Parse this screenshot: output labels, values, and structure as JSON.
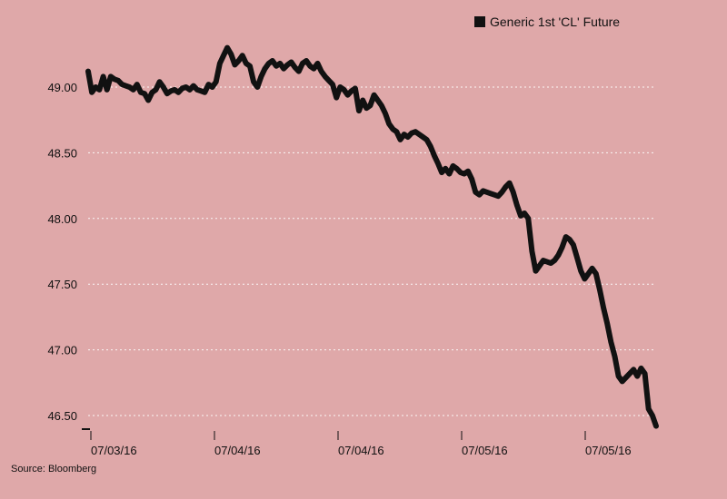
{
  "chart_data": {
    "type": "line",
    "title": "",
    "xlabel": "",
    "ylabel": "",
    "ylim": [
      46.4,
      49.4
    ],
    "y_ticks": [
      46.5,
      47.0,
      47.5,
      48.0,
      48.5,
      49.0
    ],
    "y_tick_labels": [
      "46.50",
      "47.00",
      "47.50",
      "48.00",
      "48.50",
      "49.00"
    ],
    "x_tick_labels": [
      "07/03/16",
      "07/04/16",
      "07/04/16",
      "07/05/16",
      "07/05/16"
    ],
    "grid": "horizontal dashed",
    "legend_position": "top-right",
    "series": [
      {
        "name": "Generic 1st 'CL' Future",
        "color": "#111111",
        "values": [
          49.12,
          48.96,
          49.0,
          48.98,
          49.08,
          48.98,
          49.08,
          49.06,
          49.05,
          49.02,
          49.01,
          49.0,
          48.98,
          49.02,
          48.96,
          48.95,
          48.9,
          48.96,
          48.98,
          49.04,
          49.0,
          48.95,
          48.97,
          48.98,
          48.96,
          48.99,
          49.0,
          48.98,
          49.01,
          48.98,
          48.97,
          48.96,
          49.02,
          49.0,
          49.04,
          49.18,
          49.24,
          49.3,
          49.25,
          49.17,
          49.2,
          49.24,
          49.18,
          49.16,
          49.04,
          49.0,
          49.08,
          49.14,
          49.18,
          49.2,
          49.16,
          49.18,
          49.14,
          49.17,
          49.19,
          49.15,
          49.12,
          49.18,
          49.2,
          49.16,
          49.14,
          49.18,
          49.12,
          49.08,
          49.05,
          49.02,
          48.92,
          49.0,
          48.98,
          48.94,
          48.97,
          48.99,
          48.82,
          48.9,
          48.84,
          48.86,
          48.94,
          48.9,
          48.86,
          48.8,
          48.72,
          48.68,
          48.66,
          48.6,
          48.64,
          48.62,
          48.65,
          48.66,
          48.64,
          48.62,
          48.6,
          48.55,
          48.48,
          48.42,
          48.35,
          48.38,
          48.34,
          48.4,
          48.38,
          48.35,
          48.34,
          48.36,
          48.3,
          48.2,
          48.18,
          48.21,
          48.2,
          48.19,
          48.18,
          48.17,
          48.2,
          48.24,
          48.27,
          48.2,
          48.1,
          48.02,
          48.04,
          48.0,
          47.75,
          47.6,
          47.64,
          47.68,
          47.67,
          47.66,
          47.68,
          47.72,
          47.78,
          47.86,
          47.84,
          47.8,
          47.7,
          47.6,
          47.54,
          47.58,
          47.62,
          47.58,
          47.46,
          47.32,
          47.2,
          47.06,
          46.95,
          46.8,
          46.76,
          46.79,
          46.82,
          46.85,
          46.8,
          46.86,
          46.82,
          46.55,
          46.5,
          46.42
        ]
      }
    ]
  },
  "legend": {
    "label": "Generic 1st 'CL' Future"
  },
  "source": "Source: Bloomberg"
}
